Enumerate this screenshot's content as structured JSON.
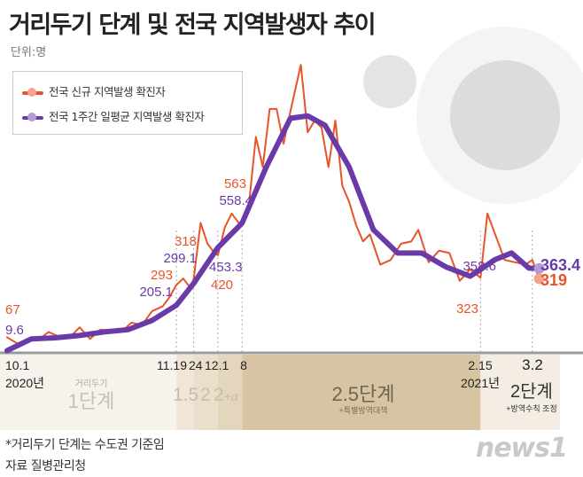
{
  "header": {
    "title": "거리두기 단계 및 전국 지역발생자 추이",
    "unit": "단위:명"
  },
  "legend": [
    {
      "label": "전국 신규 지역발생 확진자",
      "color": "#e8542a"
    },
    {
      "label": "전국 1주간 일평균 지역발생 확진자",
      "color": "#6a3aa8"
    }
  ],
  "chart_data": {
    "type": "line",
    "title": "거리두기 단계 및 전국 지역발생자 추이",
    "ylabel": "단위:명",
    "x_range": [
      "2020-10-01",
      "2021-03-04"
    ],
    "grid": false,
    "legend_position": "top-left",
    "series": [
      {
        "name": "전국 신규 지역발생 확진자",
        "color": "#e8542a",
        "x": [
          "10.01",
          "10.04",
          "10.07",
          "10.10",
          "10.13",
          "10.16",
          "10.19",
          "10.22",
          "10.25",
          "10.28",
          "10.31",
          "11.03",
          "11.06",
          "11.09",
          "11.12",
          "11.15",
          "11.17",
          "11.19",
          "11.21",
          "11.23",
          "11.24",
          "11.26",
          "11.28",
          "11.30",
          "12.01",
          "12.03",
          "12.05",
          "12.07",
          "12.08",
          "12.10",
          "12.12",
          "12.14",
          "12.16",
          "12.18",
          "12.20",
          "12.22",
          "12.25",
          "12.27",
          "12.29",
          "12.31",
          "01.02",
          "01.04",
          "01.06",
          "01.08",
          "01.10",
          "01.12",
          "01.14",
          "01.17",
          "01.20",
          "01.23",
          "01.26",
          "01.28",
          "01.31",
          "02.03",
          "02.06",
          "02.09",
          "02.12",
          "02.15",
          "02.17",
          "02.19",
          "02.22",
          "02.25",
          "02.28",
          "03.02",
          "03.04"
        ],
        "y": [
          67,
          40,
          60,
          55,
          90,
          70,
          65,
          110,
          60,
          100,
          95,
          90,
          130,
          120,
          180,
          200,
          240,
          293,
          320,
          280,
          318,
          560,
          470,
          430,
          420,
          540,
          600,
          560,
          563,
          640,
          930,
          800,
          1050,
          1050,
          900,
          1040,
          1240,
          950,
          1000,
          970,
          800,
          1000,
          720,
          650,
          550,
          480,
          510,
          380,
          400,
          470,
          480,
          530,
          390,
          440,
          430,
          310,
          360,
          323,
          600,
          520,
          400,
          390,
          380,
          400,
          319
        ]
      },
      {
        "name": "전국 1주간 일평균 지역발생 확진자",
        "color": "#6a3aa8",
        "x": [
          "10.01",
          "10.08",
          "10.15",
          "10.22",
          "10.29",
          "11.05",
          "11.12",
          "11.19",
          "11.24",
          "12.01",
          "12.08",
          "12.15",
          "12.22",
          "12.27",
          "01.01",
          "01.08",
          "01.15",
          "01.22",
          "01.29",
          "02.05",
          "02.12",
          "02.15",
          "02.19",
          "02.24",
          "03.01",
          "03.04"
        ],
        "y": [
          9.6,
          60,
          65,
          75,
          90,
          100,
          140,
          205.1,
          299.1,
          453.3,
          558.4,
          800,
          1010,
          1020,
          980,
          800,
          530,
          430,
          430,
          370,
          330,
          358.6,
          400,
          430,
          365,
          363.4
        ]
      }
    ],
    "data_labels": [
      {
        "text": "67",
        "series": 0,
        "x": "10.01"
      },
      {
        "text": "9.6",
        "series": 1,
        "x": "10.01"
      },
      {
        "text": "293",
        "series": 0,
        "x": "11.19"
      },
      {
        "text": "205.1",
        "series": 1,
        "x": "11.19"
      },
      {
        "text": "318",
        "series": 0,
        "x": "11.24"
      },
      {
        "text": "299.1",
        "series": 1,
        "x": "11.24"
      },
      {
        "text": "453.3",
        "series": 1,
        "x": "12.01"
      },
      {
        "text": "420",
        "series": 0,
        "x": "12.01"
      },
      {
        "text": "563",
        "series": 0,
        "x": "12.08"
      },
      {
        "text": "558.4",
        "series": 1,
        "x": "12.08"
      },
      {
        "text": "358.6",
        "series": 1,
        "x": "02.15"
      },
      {
        "text": "323",
        "series": 0,
        "x": "02.15"
      },
      {
        "text": "363.4",
        "series": 1,
        "x": "03.04"
      },
      {
        "text": "319",
        "series": 0,
        "x": "03.04"
      }
    ],
    "date_ticks": [
      {
        "date": "10.01",
        "label": "10.1",
        "sub": "2020년"
      },
      {
        "date": "11.19",
        "label": "11.19"
      },
      {
        "date": "11.24",
        "label": "24"
      },
      {
        "date": "12.01",
        "label": "12.1"
      },
      {
        "date": "12.08",
        "label": "8"
      },
      {
        "date": "02.15",
        "label": "2.15",
        "sub": "2021년"
      },
      {
        "date": "03.02",
        "label": "3.2"
      }
    ],
    "phases": [
      {
        "from": "10.01",
        "to": "11.19",
        "small": "거리두기",
        "label": "1단계",
        "note": "",
        "color": "#f6f2ec"
      },
      {
        "from": "11.19",
        "to": "11.24",
        "label": "1.5",
        "color": "#efe6d8"
      },
      {
        "from": "11.24",
        "to": "12.01",
        "label": "2",
        "color": "#eadfcb"
      },
      {
        "from": "12.01",
        "to": "12.08",
        "label": "2+α",
        "color": "#e4d6bc"
      },
      {
        "from": "12.08",
        "to": "02.15",
        "label": "2.5단계",
        "note": "+특별방역대책",
        "color": "#d7c4a2"
      },
      {
        "from": "02.15",
        "to": "03.10",
        "label": "2단계",
        "note": "+방역수칙 조정",
        "color": "#f3ede3"
      }
    ]
  },
  "footer": {
    "note": "*거리두기 단계는 수도권 기준임",
    "source": "자료  질병관리청",
    "logo": "news1"
  }
}
